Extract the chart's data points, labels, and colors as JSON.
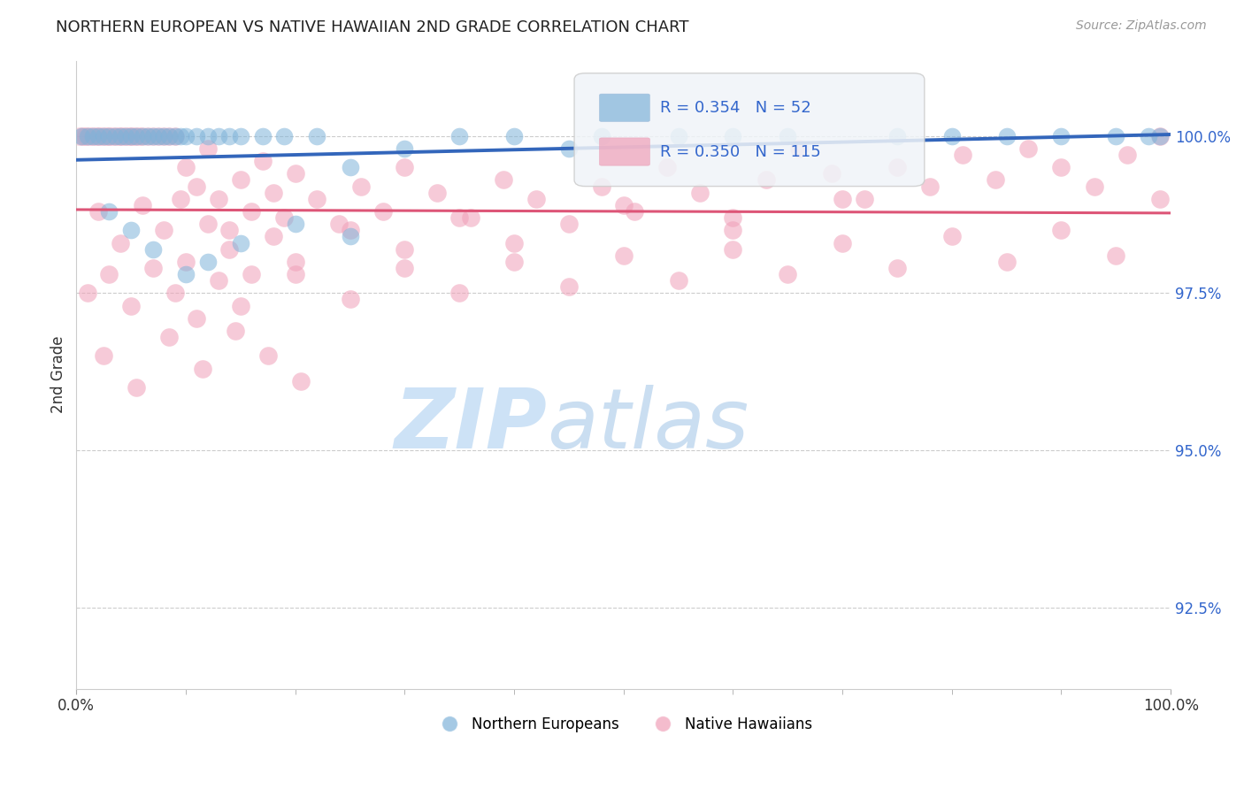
{
  "title": "NORTHERN EUROPEAN VS NATIVE HAWAIIAN 2ND GRADE CORRELATION CHART",
  "source_text": "Source: ZipAtlas.com",
  "ylabel": "2nd Grade",
  "x_min": 0.0,
  "x_max": 100.0,
  "y_min": 91.2,
  "y_max": 101.2,
  "y_ticks": [
    92.5,
    95.0,
    97.5,
    100.0
  ],
  "y_tick_labels": [
    "92.5%",
    "95.0%",
    "97.5%",
    "100.0%"
  ],
  "x_ticks": [
    0,
    100
  ],
  "x_tick_labels": [
    "0.0%",
    "100.0%"
  ],
  "blue_color": "#7fb3d9",
  "pink_color": "#f0a0b8",
  "blue_line_color": "#3366bb",
  "pink_line_color": "#dd5577",
  "blue_R": 0.354,
  "blue_N": 52,
  "pink_R": 0.35,
  "pink_N": 115,
  "watermark_zip": "ZIP",
  "watermark_atlas": "atlas",
  "legend_blue_label": "Northern Europeans",
  "legend_pink_label": "Native Hawaiians",
  "blue_x": [
    0.5,
    1.0,
    1.5,
    2.0,
    2.5,
    3.0,
    3.5,
    4.0,
    4.5,
    5.0,
    5.5,
    6.0,
    6.5,
    7.0,
    7.5,
    8.0,
    8.5,
    9.0,
    9.5,
    10.0,
    11.0,
    12.0,
    13.0,
    14.0,
    15.0,
    17.0,
    19.0,
    22.0,
    25.0,
    30.0,
    35.0,
    40.0,
    48.0,
    55.0,
    65.0,
    75.0,
    80.0,
    85.0,
    90.0,
    95.0,
    98.0,
    99.0,
    3.0,
    5.0,
    7.0,
    10.0,
    12.0,
    15.0,
    20.0,
    25.0,
    45.0,
    60.0
  ],
  "blue_y": [
    100.0,
    100.0,
    100.0,
    100.0,
    100.0,
    100.0,
    100.0,
    100.0,
    100.0,
    100.0,
    100.0,
    100.0,
    100.0,
    100.0,
    100.0,
    100.0,
    100.0,
    100.0,
    100.0,
    100.0,
    100.0,
    100.0,
    100.0,
    100.0,
    100.0,
    100.0,
    100.0,
    100.0,
    99.5,
    99.8,
    100.0,
    100.0,
    100.0,
    100.0,
    100.0,
    100.0,
    100.0,
    100.0,
    100.0,
    100.0,
    100.0,
    100.0,
    98.8,
    98.5,
    98.2,
    97.8,
    98.0,
    98.3,
    98.6,
    98.4,
    99.8,
    100.0
  ],
  "pink_x": [
    0.3,
    0.6,
    0.9,
    1.2,
    1.5,
    1.8,
    2.1,
    2.4,
    2.7,
    3.0,
    3.3,
    3.6,
    3.9,
    4.2,
    4.5,
    4.8,
    5.1,
    5.4,
    5.7,
    6.0,
    6.5,
    7.0,
    7.5,
    8.0,
    8.5,
    9.0,
    9.5,
    10.0,
    11.0,
    12.0,
    13.0,
    14.0,
    15.0,
    16.0,
    17.0,
    18.0,
    19.0,
    20.0,
    22.0,
    24.0,
    26.0,
    28.0,
    30.0,
    33.0,
    36.0,
    39.0,
    42.0,
    45.0,
    48.0,
    51.0,
    54.0,
    57.0,
    60.0,
    63.0,
    66.0,
    69.0,
    72.0,
    75.0,
    78.0,
    81.0,
    84.0,
    87.0,
    90.0,
    93.0,
    96.0,
    99.0,
    2.0,
    4.0,
    6.0,
    8.0,
    10.0,
    12.0,
    14.0,
    16.0,
    18.0,
    20.0,
    25.0,
    30.0,
    35.0,
    40.0,
    50.0,
    60.0,
    70.0,
    1.0,
    3.0,
    5.0,
    7.0,
    9.0,
    11.0,
    13.0,
    15.0,
    20.0,
    25.0,
    30.0,
    35.0,
    40.0,
    45.0,
    50.0,
    55.0,
    60.0,
    65.0,
    70.0,
    75.0,
    80.0,
    85.0,
    90.0,
    95.0,
    99.0,
    2.5,
    5.5,
    8.5,
    11.5,
    14.5,
    17.5,
    20.5
  ],
  "pink_y": [
    100.0,
    100.0,
    100.0,
    100.0,
    100.0,
    100.0,
    100.0,
    100.0,
    100.0,
    100.0,
    100.0,
    100.0,
    100.0,
    100.0,
    100.0,
    100.0,
    100.0,
    100.0,
    100.0,
    100.0,
    100.0,
    100.0,
    100.0,
    100.0,
    100.0,
    100.0,
    99.0,
    99.5,
    99.2,
    99.8,
    99.0,
    98.5,
    99.3,
    98.8,
    99.6,
    99.1,
    98.7,
    99.4,
    99.0,
    98.6,
    99.2,
    98.8,
    99.5,
    99.1,
    98.7,
    99.3,
    99.0,
    98.6,
    99.2,
    98.8,
    99.5,
    99.1,
    98.7,
    99.3,
    99.8,
    99.4,
    99.0,
    99.5,
    99.2,
    99.7,
    99.3,
    99.8,
    99.5,
    99.2,
    99.7,
    100.0,
    98.8,
    98.3,
    98.9,
    98.5,
    98.0,
    98.6,
    98.2,
    97.8,
    98.4,
    98.0,
    98.5,
    98.2,
    98.7,
    98.3,
    98.9,
    98.5,
    99.0,
    97.5,
    97.8,
    97.3,
    97.9,
    97.5,
    97.1,
    97.7,
    97.3,
    97.8,
    97.4,
    97.9,
    97.5,
    98.0,
    97.6,
    98.1,
    97.7,
    98.2,
    97.8,
    98.3,
    97.9,
    98.4,
    98.0,
    98.5,
    98.1,
    99.0,
    96.5,
    96.0,
    96.8,
    96.3,
    96.9,
    96.5,
    96.1
  ]
}
